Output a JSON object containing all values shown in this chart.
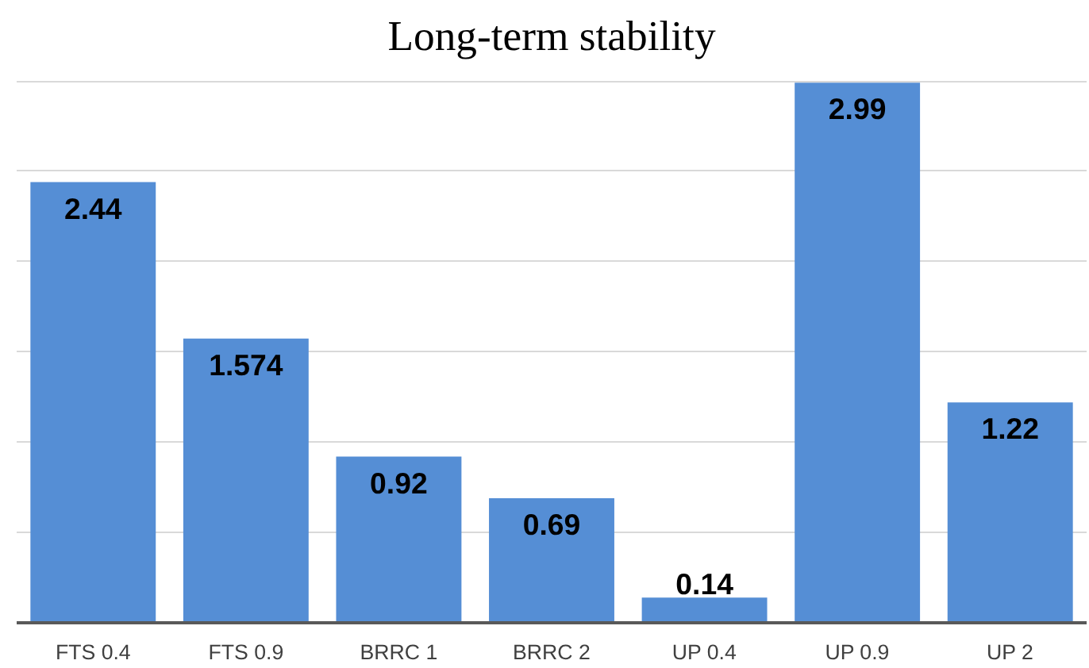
{
  "chart_data": {
    "type": "bar",
    "title": "Long-term stability",
    "categories": [
      "FTS 0.4",
      "FTS 0.9",
      "BRRC 1",
      "BRRC 2",
      "UP 0.4",
      "UP 0.9",
      "UP 2"
    ],
    "values": [
      2.44,
      1.574,
      0.92,
      0.69,
      0.14,
      2.99,
      1.22
    ],
    "color": "#558ed5",
    "yticks": [
      {
        "value": 0,
        "label": null
      },
      {
        "value": 0.5,
        "label": null
      },
      {
        "value": 1,
        "label": null
      },
      {
        "value": 1.5,
        "label": null
      },
      {
        "value": 2,
        "label": null
      },
      {
        "value": 2.5,
        "label": null
      },
      {
        "value": 3,
        "label": null
      }
    ],
    "grid": "y",
    "tick_labels": "x",
    "data_labels": true
  }
}
